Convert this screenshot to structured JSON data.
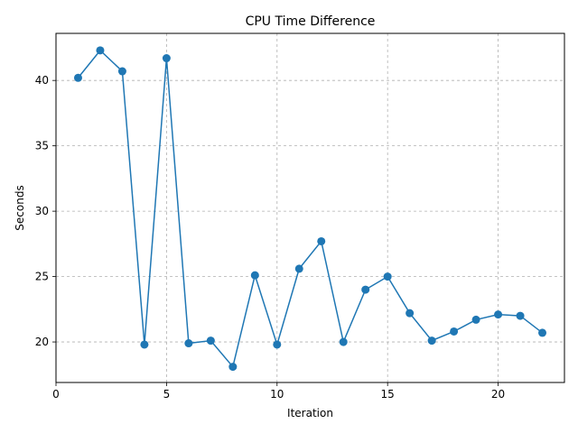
{
  "chart_data": {
    "type": "line",
    "title": "CPU Time Difference",
    "xlabel": "Iteration",
    "ylabel": "Seconds",
    "xlim": [
      0,
      23
    ],
    "ylim": [
      16.9,
      43.6
    ],
    "xticks": [
      0,
      5,
      10,
      15,
      20
    ],
    "yticks": [
      20,
      25,
      30,
      35,
      40
    ],
    "grid": true,
    "legend": "none",
    "marker": "circle",
    "series": [
      {
        "color": "#1f77b4",
        "x": [
          1,
          2,
          3,
          4,
          5,
          6,
          7,
          8,
          9,
          10,
          11,
          12,
          13,
          14,
          15,
          16,
          17,
          18,
          19,
          20,
          21,
          22
        ],
        "y": [
          40.2,
          42.3,
          40.7,
          19.8,
          41.7,
          19.9,
          20.1,
          18.1,
          25.1,
          19.8,
          25.6,
          27.7,
          20.0,
          24.0,
          25.0,
          22.2,
          20.1,
          20.8,
          21.7,
          22.1,
          22.0,
          20.7
        ]
      }
    ]
  }
}
